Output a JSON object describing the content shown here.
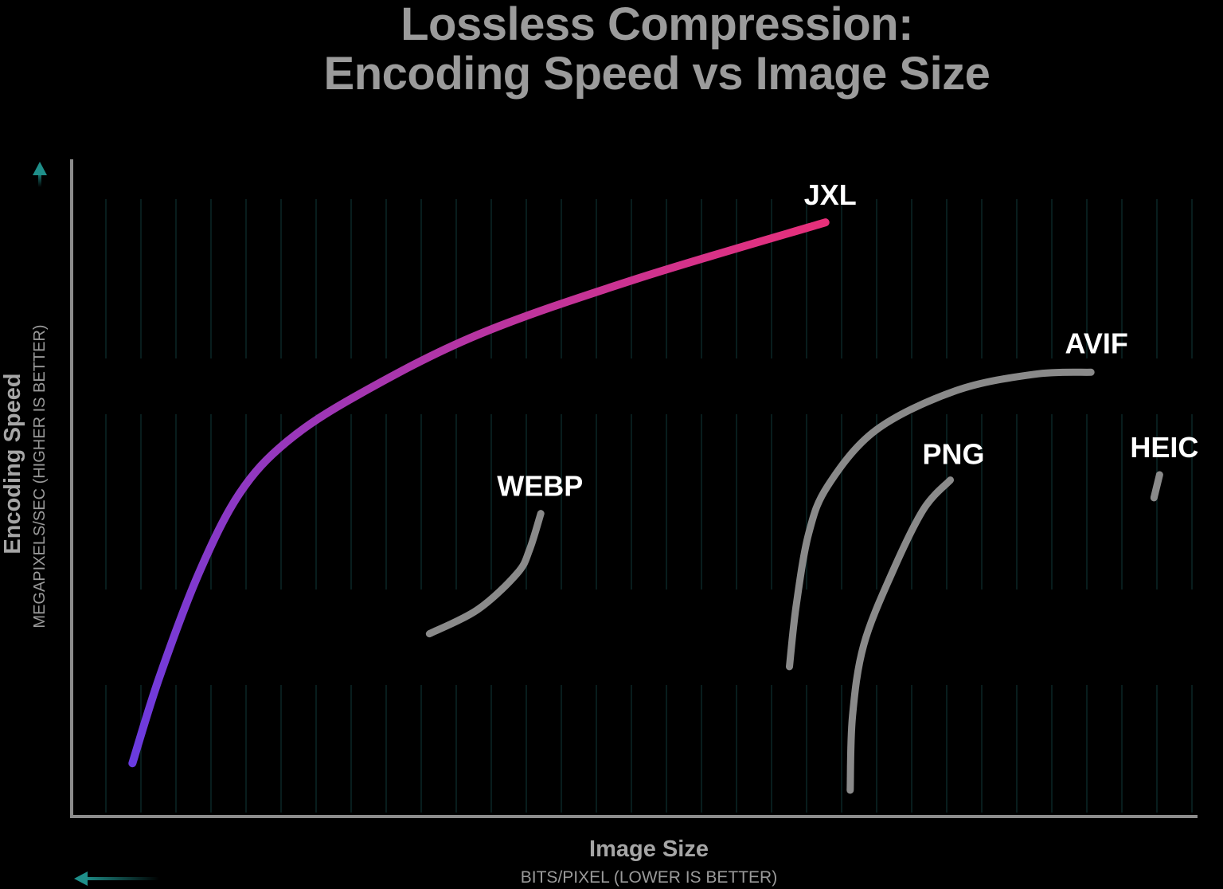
{
  "chart_data": {
    "type": "line",
    "title": [
      "Lossless Compression:",
      "Encoding Speed vs Image Size"
    ],
    "xlabel": "Image Size",
    "xlabel_sub": "BITS/PIXEL (LOWER IS BETTER)",
    "ylabel": "Encoding Speed",
    "ylabel_sub": "MEGAPIXELS/SEC (HIGHER IS BETTER)",
    "xlim": [
      0,
      100
    ],
    "ylim": [
      0,
      100
    ],
    "ticks": "none",
    "grid": false,
    "legend": "inline labels at curve ends",
    "series": [
      {
        "name": "JXL",
        "color_start": "#6a3be0",
        "color_end": "#e8307a",
        "x": [
          5.4,
          7.8,
          11.3,
          14.9,
          19.1,
          25.5,
          36.1,
          50.2,
          67.0
        ],
        "y": [
          8.1,
          21.2,
          37.0,
          49.1,
          57.0,
          64.2,
          73.3,
          81.8,
          90.4
        ]
      },
      {
        "name": "WEBP",
        "color": "#8a8a8a",
        "x": [
          31.8,
          36.1,
          39.6,
          40.7,
          41.7
        ],
        "y": [
          27.8,
          31.5,
          37.0,
          40.6,
          46.1
        ]
      },
      {
        "name": "AVIF",
        "color": "#8a8a8a",
        "x": [
          63.8,
          64.4,
          65.5,
          67.2,
          71.5,
          78.6,
          85.6,
          90.6
        ],
        "y": [
          22.8,
          32.1,
          43.0,
          50.3,
          58.8,
          64.8,
          67.3,
          67.6
        ]
      },
      {
        "name": "PNG",
        "color": "#8a8a8a",
        "x": [
          69.2,
          69.4,
          70.4,
          72.9,
          75.7,
          78.1
        ],
        "y": [
          4.0,
          15.2,
          26.1,
          37.0,
          46.7,
          51.2
        ]
      },
      {
        "name": "HEIC",
        "color": "#8a8a8a",
        "x": [
          96.2,
          96.7
        ],
        "y": [
          48.5,
          52.0
        ]
      }
    ],
    "axis_color": "#8c8c8c",
    "arrow_color": "#1f8f8a"
  }
}
